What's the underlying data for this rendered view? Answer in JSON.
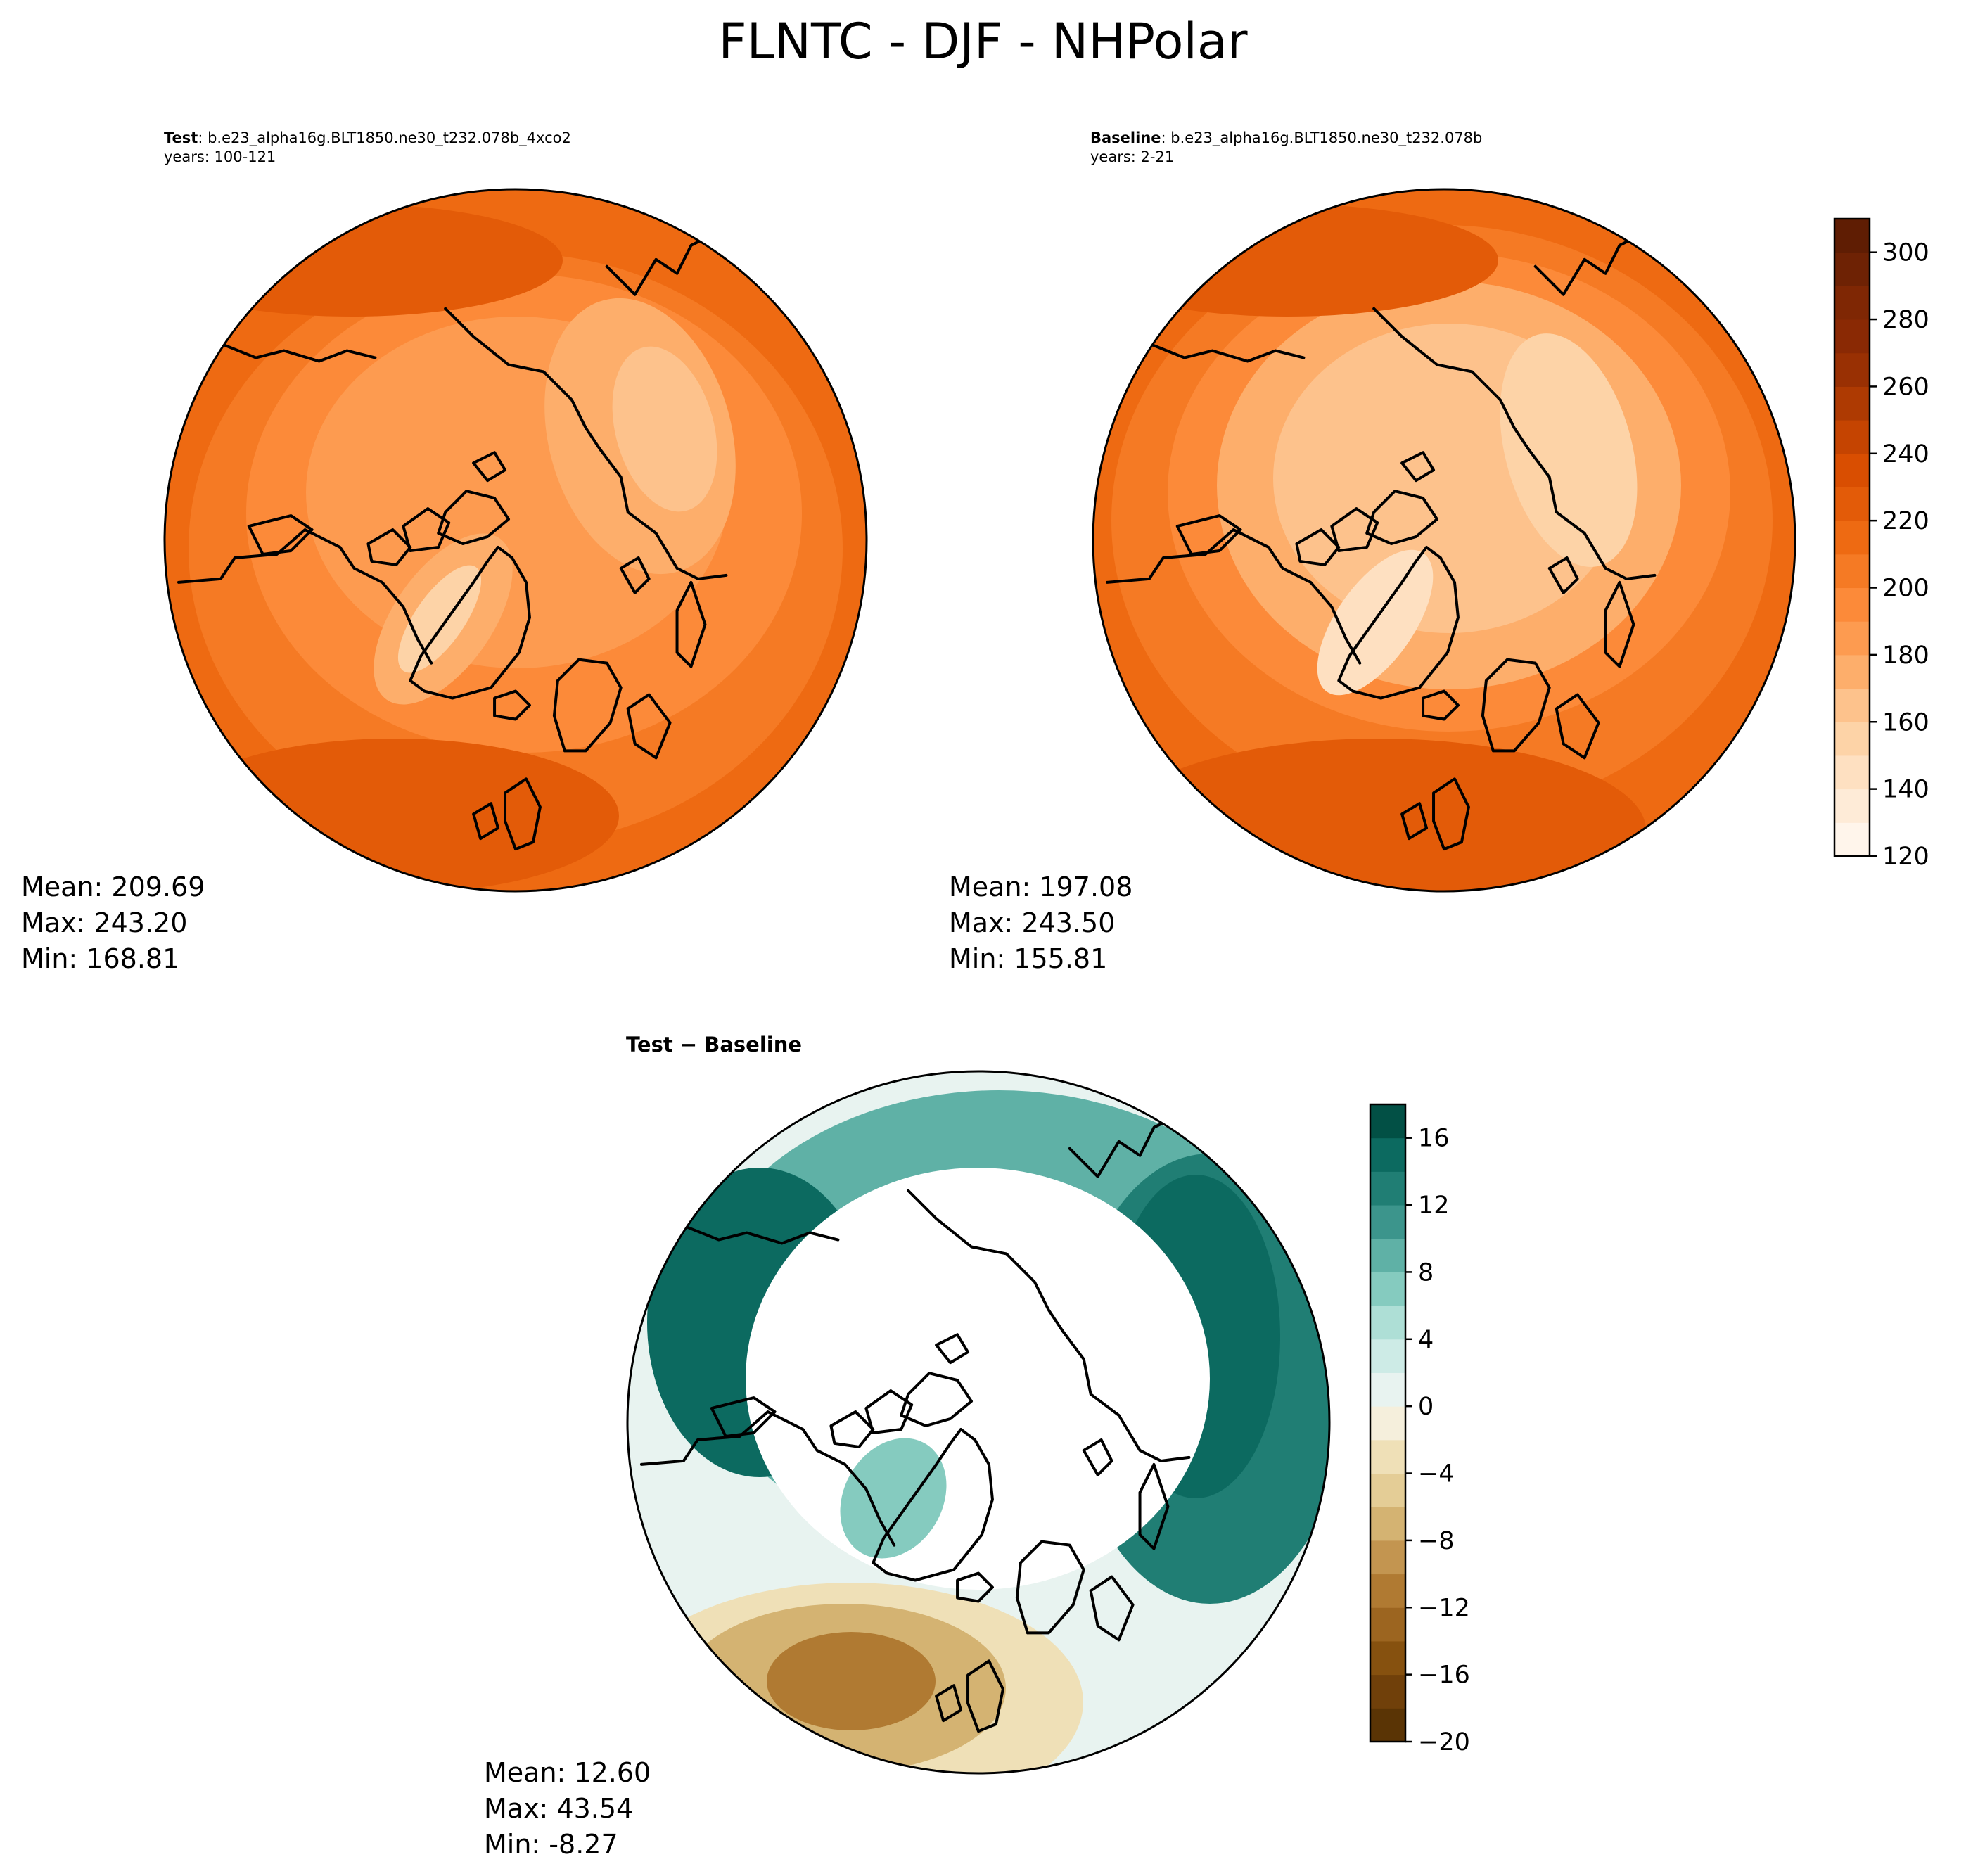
{
  "figure_title": "FLNTC - DJF - NHPolar",
  "panels": {
    "test": {
      "label_bold": "Test",
      "label_rest": ": b.e23_alpha16g.BLT1850.ne30_t232.078b_4xco2",
      "years": "years: 100-121",
      "stats": {
        "mean": "Mean: 209.69",
        "max": "Max: 243.20",
        "min": "Min: 168.81"
      }
    },
    "baseline": {
      "label_bold": "Baseline",
      "label_rest": ": b.e23_alpha16g.BLT1850.ne30_t232.078b",
      "years": "years: 2-21",
      "stats": {
        "mean": "Mean: 197.08",
        "max": "Max: 243.50",
        "min": "Min: 155.81"
      }
    },
    "difference": {
      "title": "Test − Baseline",
      "stats": {
        "mean": "Mean: 12.60",
        "max": "Max: 43.54",
        "min": "Min: -8.27"
      }
    }
  },
  "colorbars": {
    "absolute": {
      "colormap": "Oranges",
      "range": [
        120,
        310
      ],
      "levels": [
        120,
        130,
        140,
        150,
        160,
        170,
        180,
        190,
        200,
        210,
        220,
        230,
        240,
        250,
        260,
        270,
        280,
        290,
        300,
        310
      ],
      "ticks": [
        "120",
        "140",
        "160",
        "180",
        "200",
        "220",
        "240",
        "260",
        "280",
        "300"
      ],
      "colors": [
        "#fff5eb",
        "#feebd7",
        "#fee0c1",
        "#fdd3a7",
        "#fdc28c",
        "#fdae6b",
        "#fd9b50",
        "#fc8a39",
        "#f57a24",
        "#ee6a12",
        "#e35b08",
        "#d94e01",
        "#c54401",
        "#ae3a02",
        "#993003",
        "#8a2904",
        "#7f2704",
        "#6e2204",
        "#5f1d03"
      ]
    },
    "difference": {
      "colormap": "BrBG",
      "range": [
        -20,
        18
      ],
      "levels": [
        -20,
        -18,
        -16,
        -14,
        -12,
        -10,
        -8,
        -6,
        -4,
        -2,
        0,
        2,
        4,
        6,
        8,
        10,
        12,
        14,
        16,
        18
      ],
      "ticks": [
        "−20",
        "−16",
        "−12",
        "−8",
        "−4",
        "0",
        "4",
        "8",
        "12",
        "16"
      ],
      "colors": [
        "#5a3405",
        "#70400a",
        "#86510f",
        "#9c6520",
        "#b07a32",
        "#c39550",
        "#d4b372",
        "#e4cd96",
        "#efe0b7",
        "#f5efdc",
        "#e8f3f0",
        "#cdebe6",
        "#aedfd6",
        "#85cbbf",
        "#5fb1a6",
        "#3c958c",
        "#207e74",
        "#0c6a60",
        "#025045"
      ]
    }
  }
}
